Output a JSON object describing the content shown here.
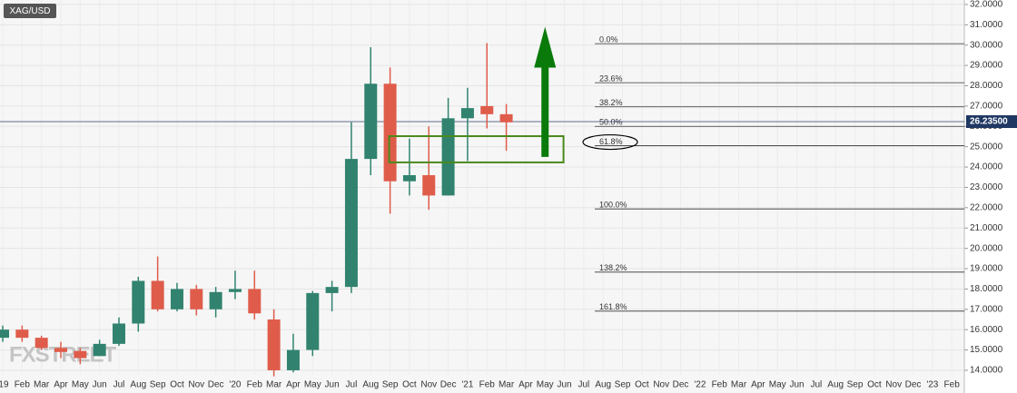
{
  "chart_data": {
    "type": "candlestick",
    "title": "XAG/USD",
    "watermark": "FXSTREET",
    "categories": [
      "'19",
      "Feb",
      "Mar",
      "Apr",
      "May",
      "Jun",
      "Jul",
      "Aug",
      "Sep",
      "Oct",
      "Nov",
      "Dec",
      "'20",
      "Feb",
      "Mar",
      "Apr",
      "May",
      "Jun",
      "Jul",
      "Aug",
      "Sep",
      "Oct",
      "Nov",
      "Dec",
      "'21",
      "Feb",
      "Mar",
      "Apr",
      "May",
      "Jun",
      "Jul",
      "Aug",
      "Sep",
      "Oct",
      "Nov",
      "Dec",
      "'22",
      "Feb",
      "Mar",
      "Apr",
      "May",
      "Jun",
      "Jul",
      "Aug",
      "Sep",
      "Oct",
      "Nov",
      "Dec",
      "'23",
      "Feb"
    ],
    "open": [
      15.6,
      16.0,
      15.6,
      15.1,
      14.95,
      14.7,
      15.3,
      16.3,
      18.4,
      17.0,
      18.0,
      17.0,
      17.85,
      18.0,
      16.5,
      14.0,
      15.0,
      17.8,
      18.1,
      24.4,
      28.1,
      23.3,
      23.6,
      22.6,
      26.4,
      27.0,
      26.6,
      null,
      null,
      null,
      null,
      null,
      null,
      null,
      null,
      null,
      null,
      null,
      null,
      null,
      null,
      null,
      null,
      null,
      null,
      null,
      null,
      null,
      null,
      null
    ],
    "high": [
      16.2,
      16.2,
      15.7,
      15.4,
      15.1,
      15.5,
      16.6,
      18.6,
      19.6,
      18.3,
      18.2,
      18.1,
      18.9,
      18.9,
      17.0,
      15.8,
      17.9,
      18.4,
      26.2,
      29.9,
      28.9,
      25.4,
      26.0,
      27.4,
      27.9,
      30.1,
      27.1,
      null,
      null,
      null,
      null,
      null,
      null,
      null,
      null,
      null,
      null,
      null,
      null,
      null,
      null,
      null,
      null,
      null,
      null,
      null,
      null,
      null,
      null,
      null
    ],
    "low": [
      15.4,
      15.4,
      15.0,
      14.6,
      14.3,
      14.7,
      15.2,
      15.9,
      16.9,
      16.9,
      16.7,
      16.6,
      17.5,
      16.5,
      13.7,
      13.9,
      14.7,
      16.9,
      17.8,
      23.6,
      21.7,
      22.6,
      21.9,
      22.6,
      24.3,
      25.9,
      24.8,
      null,
      null,
      null,
      null,
      null,
      null,
      null,
      null,
      null,
      null,
      null,
      null,
      null,
      null,
      null,
      null,
      null,
      null,
      null,
      null,
      null,
      null,
      null
    ],
    "close": [
      16.0,
      15.6,
      15.1,
      14.9,
      14.6,
      15.3,
      16.3,
      18.4,
      17.0,
      18.0,
      17.0,
      17.85,
      18.0,
      16.8,
      14.0,
      15.0,
      17.8,
      18.1,
      24.4,
      28.1,
      23.3,
      23.6,
      22.6,
      26.4,
      26.9,
      26.6,
      26.2,
      null,
      null,
      null,
      null,
      null,
      null,
      null,
      null,
      null,
      null,
      null,
      null,
      null,
      null,
      null,
      null,
      null,
      null,
      null,
      null,
      null,
      null,
      null
    ],
    "up_color": "#31836f",
    "down_color": "#df5c4b",
    "ylim": [
      13.82,
      32.22
    ],
    "yticks": [
      {
        "value": 14,
        "label": "14.0000"
      },
      {
        "value": 15,
        "label": "15.0000"
      },
      {
        "value": 16,
        "label": "16.0000"
      },
      {
        "value": 17,
        "label": "17.0000"
      },
      {
        "value": 18,
        "label": "18.0000"
      },
      {
        "value": 19,
        "label": "19.0000"
      },
      {
        "value": 20,
        "label": "20.0000"
      },
      {
        "value": 21,
        "label": "21.0000"
      },
      {
        "value": 22,
        "label": "22.0000"
      },
      {
        "value": 23,
        "label": "23.0000"
      },
      {
        "value": 24,
        "label": "24.0000"
      },
      {
        "value": 25,
        "label": "25.0000"
      },
      {
        "value": 26,
        "label": "26.0000"
      },
      {
        "value": 27,
        "label": "27.0000"
      },
      {
        "value": 28,
        "label": "28.0000"
      },
      {
        "value": 29,
        "label": "29.0000"
      },
      {
        "value": 30,
        "label": "30.0000"
      },
      {
        "value": 31,
        "label": "31.0000"
      },
      {
        "value": 32,
        "label": "32.0000"
      }
    ],
    "grid": true,
    "current_price": {
      "value": 26.235,
      "label": "26.23500"
    },
    "fib_levels": [
      {
        "value": 30.07,
        "label": "0.0%"
      },
      {
        "value": 28.15,
        "label": "23.6%"
      },
      {
        "value": 26.96,
        "label": "38.2%"
      },
      {
        "value": 26.0,
        "label": "50.0%"
      },
      {
        "value": 25.05,
        "label": "61.8%"
      },
      {
        "value": 21.94,
        "label": "100.0%"
      },
      {
        "value": 18.83,
        "label": "138.2%"
      },
      {
        "value": 16.91,
        "label": "161.8%"
      }
    ],
    "zone": [
      24.23,
      25.52
    ],
    "zone_color": "#4a8a1c",
    "arrow": [
      24.5,
      30.9
    ],
    "arrow_color": "#0a7a0a"
  }
}
